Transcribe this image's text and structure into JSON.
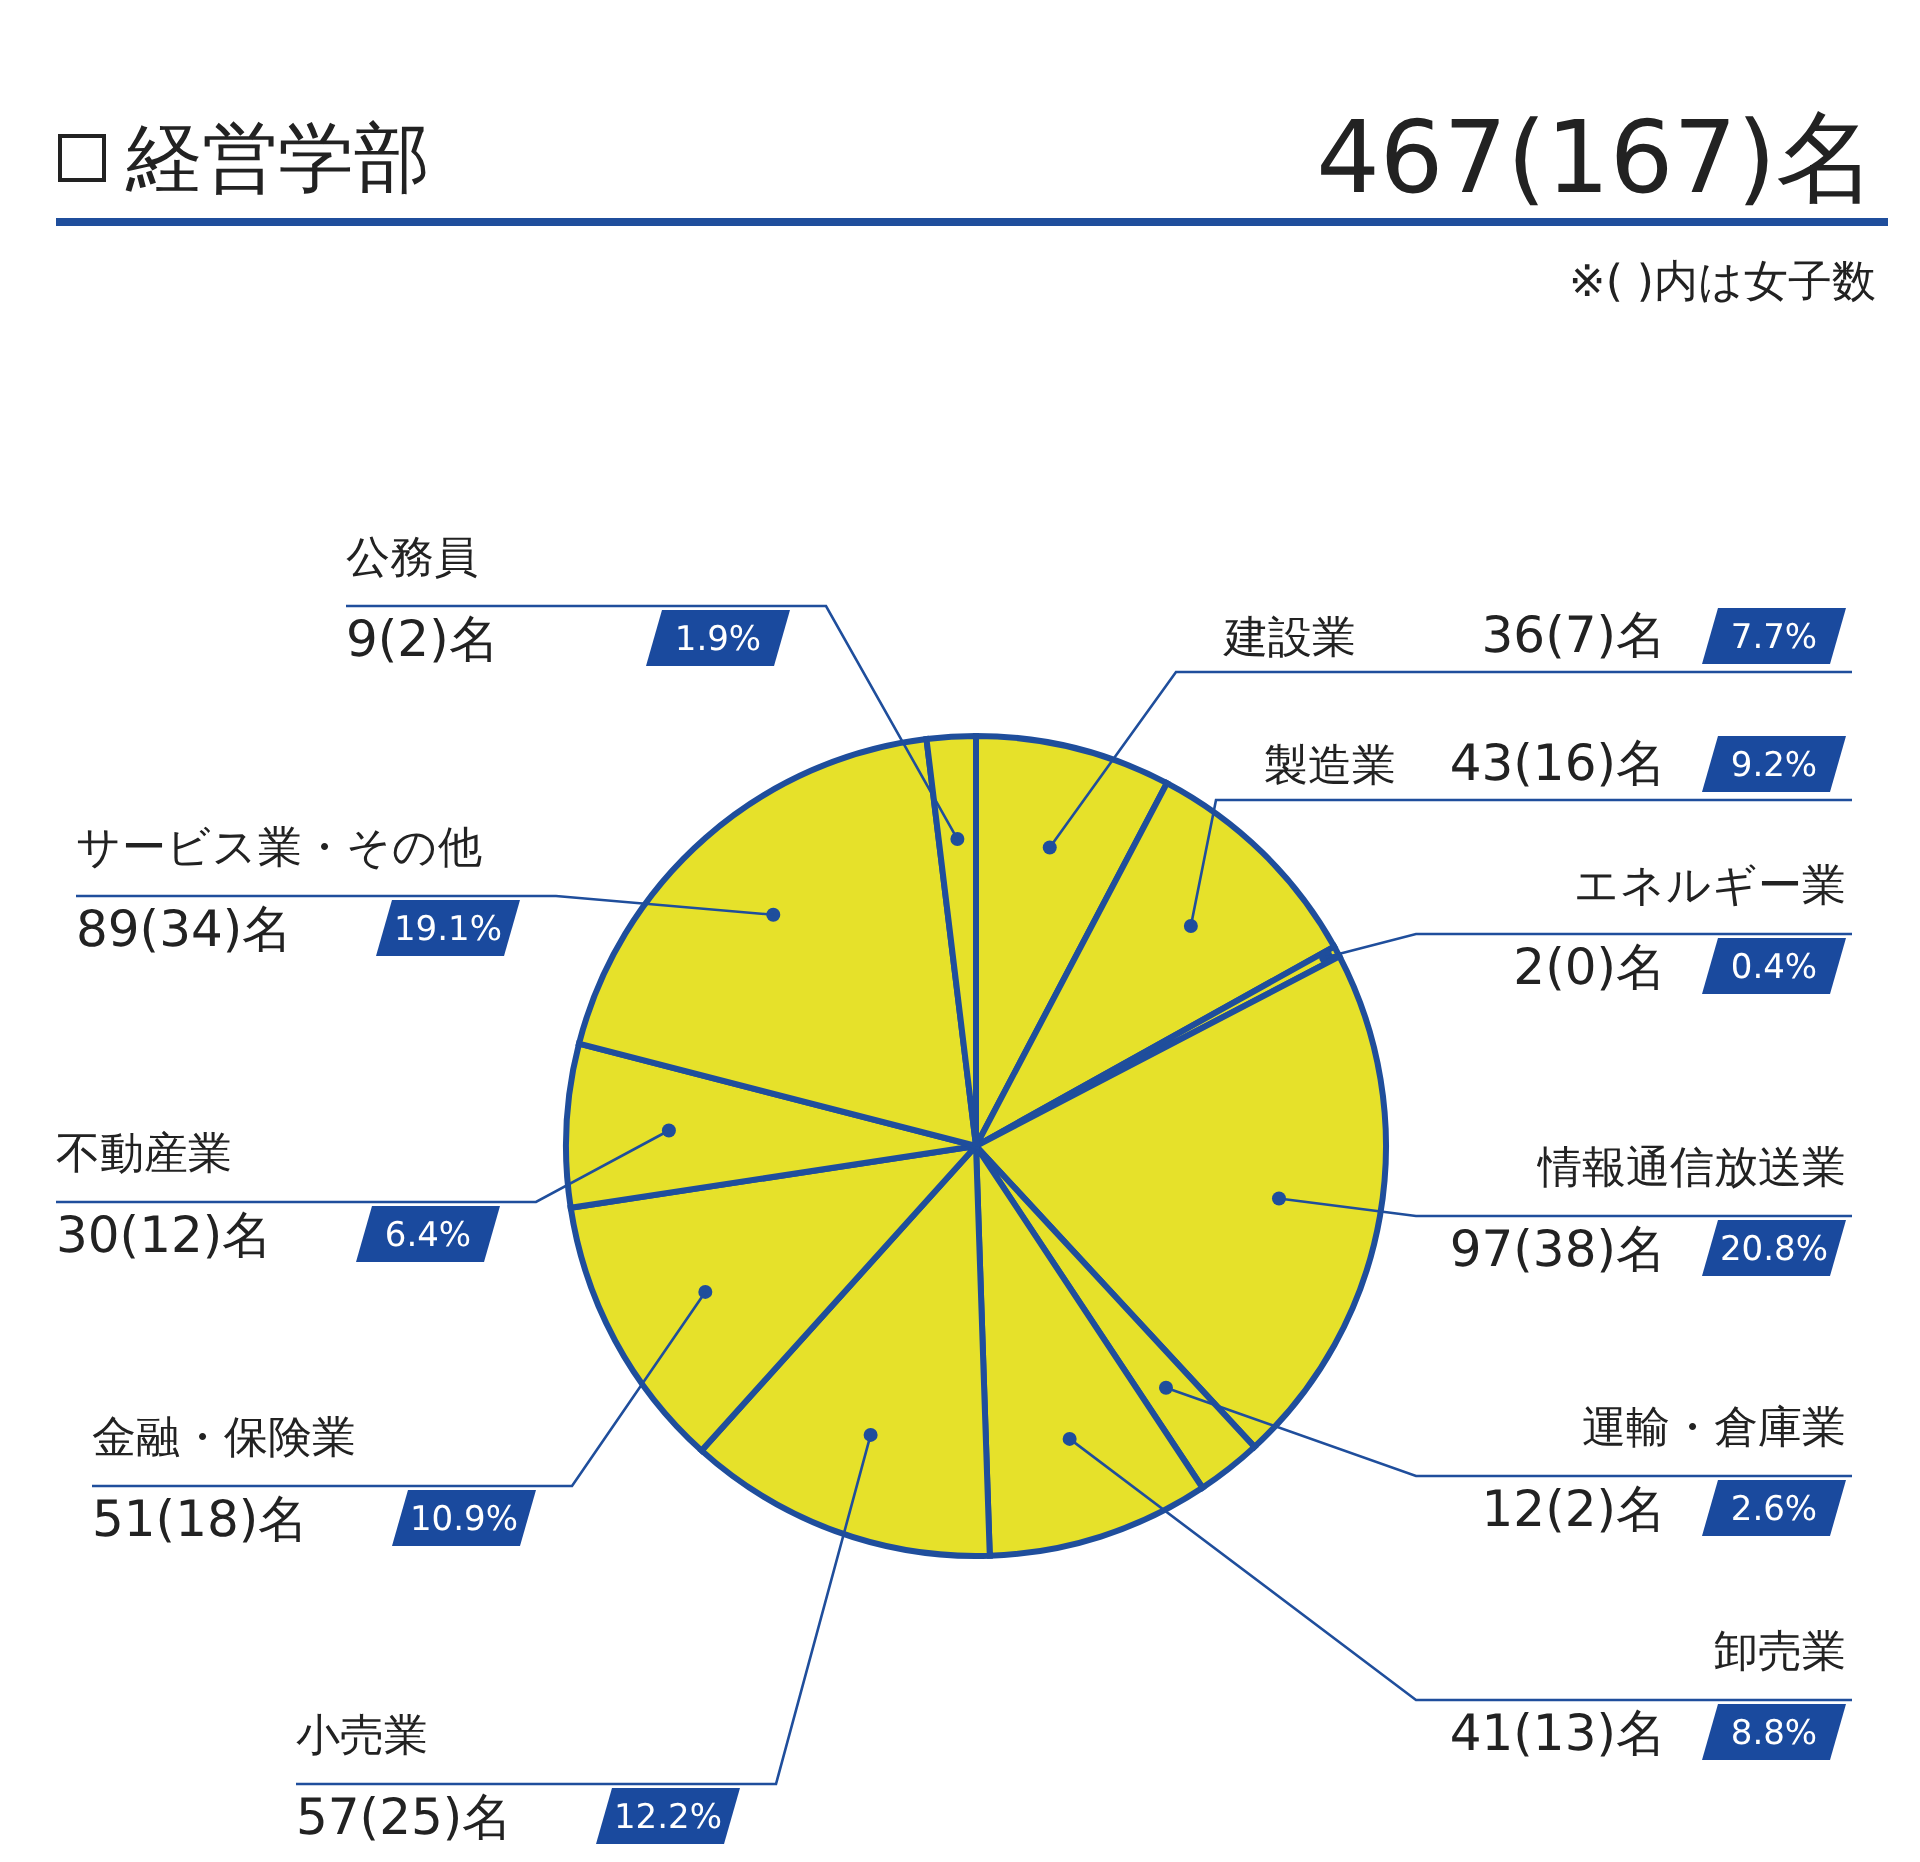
{
  "chart_data": {
    "type": "pie",
    "title": "経営学部",
    "subtitle": "467(167)名",
    "categories": [
      "建設業",
      "製造業",
      "エネルギー業",
      "情報通信放送業",
      "運輸・倉庫業",
      "卸売業",
      "小売業",
      "金融・保険業",
      "不動産業",
      "サービス業・その他",
      "公務員"
    ],
    "values": [
      36,
      43,
      2,
      97,
      12,
      41,
      57,
      51,
      30,
      89,
      9
    ],
    "value_labels": [
      "36(7)名",
      "43(16)名",
      "2(0)名",
      "97(38)名",
      "12(2)名",
      "41(13)名",
      "57(25)名",
      "51(18)名",
      "30(12)名",
      "89(34)名",
      "9(2)名"
    ],
    "colors": [
      "#e6e12a",
      "#e6e12a",
      "#e6e12a",
      "#e6e12a",
      "#e6e12a",
      "#e6e12a",
      "#e6e12a",
      "#e6e12a",
      "#e6e12a",
      "#e6e12a",
      "#e6e12a"
    ],
    "annotations": [
      "※( )内は女子数",
      "7.7%",
      "9.2%",
      "0.4%",
      "20.8%",
      "2.6%",
      "8.8%",
      "12.2%",
      "10.9%",
      "6.4%",
      "19.1%",
      "1.9%"
    ]
  }
}
